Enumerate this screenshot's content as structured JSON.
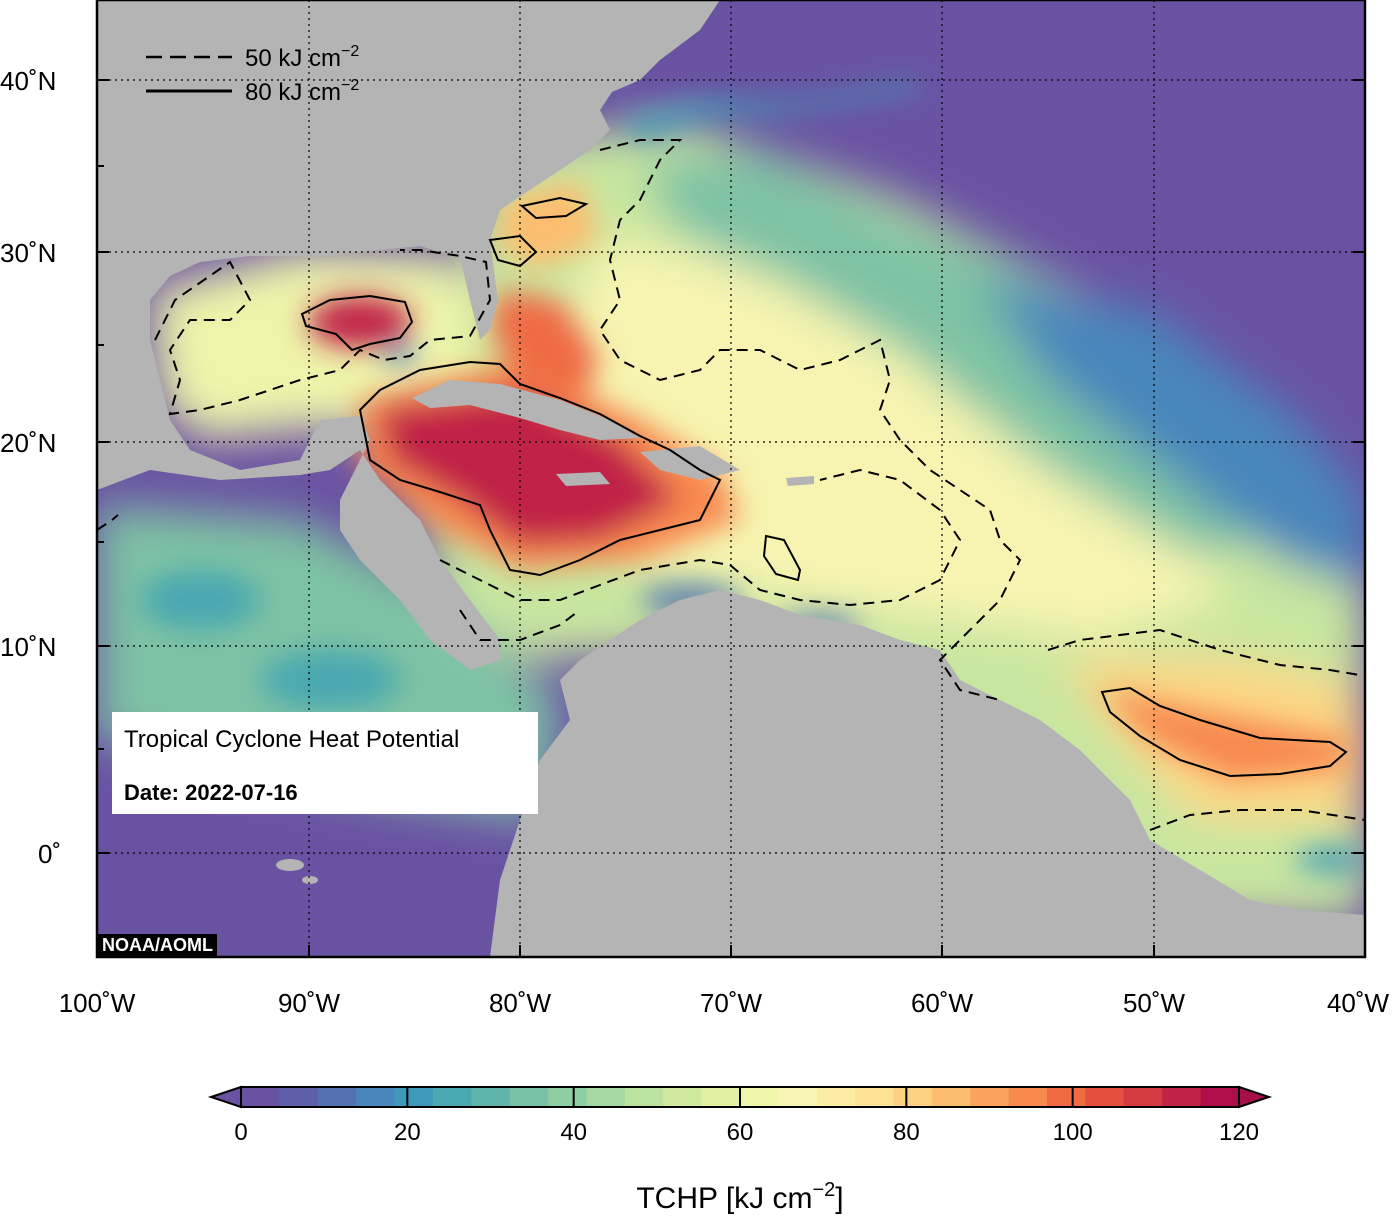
{
  "figure": {
    "title": "Tropical Cyclone Heat Potential",
    "date": "Date: 2022-07-16",
    "credit": "NOAA/AOML"
  },
  "legend": {
    "items": [
      {
        "label": "50 kJ cm",
        "sup": "−2",
        "style": "dashed"
      },
      {
        "label": "80 kJ cm",
        "sup": "−2",
        "style": "solid"
      }
    ]
  },
  "axes": {
    "x_ticks": [
      "100˚W",
      "90˚W",
      "80˚W",
      "70˚W",
      "60˚W",
      "50˚W",
      "40˚W"
    ],
    "y_ticks": [
      "40˚N",
      "30˚N",
      "20˚N",
      "10˚N",
      "0˚"
    ],
    "lon_range": [
      -100,
      -40
    ],
    "lat_range": [
      -5,
      44
    ]
  },
  "colorbar": {
    "label": "TCHP [kJ cm",
    "label_sup": "−2",
    "label_end": "]",
    "ticks": [
      "0",
      "20",
      "40",
      "60",
      "80",
      "100",
      "120"
    ],
    "range": [
      0,
      120
    ],
    "colors": [
      "#6a52a3",
      "#5e5fab",
      "#5471b3",
      "#4a86bb",
      "#3f99b8",
      "#4aa8b0",
      "#5fb5a9",
      "#78c1a4",
      "#8fcda2",
      "#a5d8a3",
      "#bbe2a0",
      "#cfea9f",
      "#e1f1a3",
      "#eff6ac",
      "#f8f6b4",
      "#fdeda4",
      "#fde295",
      "#fdd182",
      "#fcbd70",
      "#fba25e",
      "#f8894f",
      "#f06b44",
      "#e4503e",
      "#d43a42",
      "#c12247",
      "#ad0f4a"
    ],
    "under_color": "#6a52a3",
    "over_color": "#a50f4a"
  },
  "colors": {
    "land": "#b4b4b4",
    "deep_ocean": "#6a52a3",
    "contour": "#000000"
  }
}
